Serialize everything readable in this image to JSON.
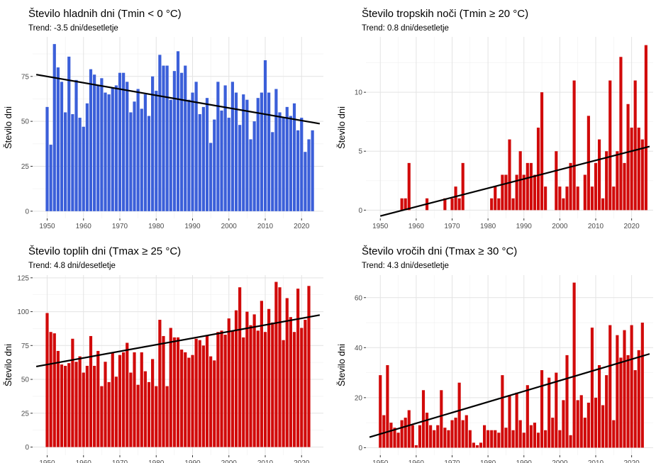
{
  "chart_data": [
    {
      "type": "bar",
      "title": "Število hladnih dni (Tmin < 0 °C)",
      "subtitle": "Trend: -3.5 dni/desetletje",
      "ylabel": "Število dni",
      "xlabel": "",
      "bar_color": "#3b5fd9",
      "x_start": 1950,
      "values": [
        58,
        37,
        93,
        80,
        72,
        55,
        86,
        54,
        73,
        52,
        47,
        60,
        79,
        76,
        70,
        74,
        66,
        65,
        69,
        70,
        77,
        77,
        72,
        55,
        61,
        68,
        57,
        65,
        53,
        75,
        67,
        87,
        81,
        81,
        62,
        78,
        89,
        77,
        81,
        62,
        66,
        72,
        54,
        58,
        63,
        38,
        51,
        72,
        56,
        70,
        52,
        72,
        66,
        48,
        65,
        62,
        40,
        50,
        63,
        66,
        84,
        66,
        44,
        68,
        55,
        52,
        58,
        53,
        60,
        45,
        52,
        33,
        40,
        45
      ],
      "xticks": [
        1950,
        1960,
        1970,
        1980,
        1990,
        2000,
        2010,
        2020
      ],
      "yticks": [
        0,
        25,
        50,
        75
      ],
      "ylim": [
        -4,
        97
      ],
      "trend": [
        [
          1947,
          76
        ],
        [
          2025,
          48.7
        ]
      ],
      "grid": true,
      "legend": "none"
    },
    {
      "type": "bar",
      "title": "Število tropskih noči (Tmin ≥ 20 °C)",
      "subtitle": "Trend: 0.8 dni/desetletje",
      "ylabel": "Število dni",
      "xlabel": "",
      "bar_color": "#d10a0a",
      "x_start": 1950,
      "values": [
        0,
        0,
        0,
        0,
        0,
        0,
        1,
        1,
        4,
        0,
        0,
        0,
        0,
        1,
        0,
        0,
        0,
        0,
        1,
        0,
        1,
        2,
        1,
        4,
        0,
        0,
        0,
        0,
        0,
        0,
        0,
        1,
        2,
        1,
        3,
        3,
        6,
        1,
        3,
        5,
        3,
        4,
        4,
        3,
        7,
        10,
        2,
        0,
        0,
        5,
        2,
        1,
        2,
        4,
        11,
        2,
        0,
        3,
        8,
        2,
        4,
        6,
        1,
        5,
        11,
        2,
        5,
        13,
        4,
        9,
        7,
        11,
        7,
        6,
        14
      ],
      "xticks": [
        1950,
        1960,
        1970,
        1980,
        1990,
        2000,
        2010,
        2020
      ],
      "yticks": [
        0,
        5,
        10
      ],
      "ylim": [
        -0.7,
        14.7
      ],
      "trend": [
        [
          1950,
          -0.5
        ],
        [
          2025,
          5.4
        ]
      ],
      "grid": true,
      "legend": "none"
    },
    {
      "type": "bar",
      "title": "Število toplih dni (Tmax ≥ 25 °C)",
      "subtitle": "Trend: 4.8 dni/desetletje",
      "ylabel": "Število dni",
      "xlabel": "",
      "bar_color": "#d10a0a",
      "x_start": 1950,
      "values": [
        99,
        85,
        84,
        71,
        61,
        60,
        62,
        80,
        63,
        67,
        55,
        60,
        82,
        60,
        71,
        45,
        63,
        48,
        70,
        52,
        68,
        70,
        77,
        55,
        70,
        46,
        70,
        56,
        48,
        65,
        45,
        94,
        82,
        45,
        88,
        81,
        81,
        72,
        70,
        66,
        68,
        80,
        79,
        75,
        82,
        67,
        64,
        85,
        86,
        83,
        95,
        86,
        101,
        118,
        81,
        100,
        90,
        98,
        86,
        108,
        85,
        102,
        92,
        122,
        118,
        79,
        110,
        96,
        85,
        117,
        88,
        94,
        119
      ],
      "xticks": [
        1950,
        1960,
        1970,
        1980,
        1990,
        2000,
        2010,
        2020
      ],
      "yticks": [
        0,
        25,
        50,
        75,
        100,
        125
      ],
      "ylim": [
        -6,
        127
      ],
      "trend": [
        [
          1947,
          59.5
        ],
        [
          2025,
          97.5
        ]
      ],
      "grid": true,
      "legend": "none"
    },
    {
      "type": "bar",
      "title": "Število vročih dni (Tmax ≥ 30 °C)",
      "subtitle": "Trend: 4.3 dni/desetletje",
      "ylabel": "Število dni",
      "xlabel": "",
      "bar_color": "#d10a0a",
      "x_start": 1950,
      "values": [
        29,
        13,
        33,
        10,
        8,
        6,
        11,
        12,
        15,
        9,
        1,
        9,
        23,
        14,
        9,
        7,
        9,
        23,
        8,
        7,
        11,
        12,
        26,
        11,
        13,
        7,
        2,
        1,
        2,
        9,
        7,
        7,
        7,
        6,
        29,
        8,
        21,
        7,
        22,
        11,
        6,
        25,
        9,
        10,
        6,
        31,
        7,
        28,
        12,
        30,
        7,
        19,
        37,
        5,
        66,
        19,
        21,
        12,
        18,
        48,
        20,
        33,
        17,
        29,
        49,
        11,
        45,
        36,
        47,
        37,
        49,
        31,
        39,
        50
      ],
      "xticks": [
        1950,
        1960,
        1970,
        1980,
        1990,
        2000,
        2010,
        2020
      ],
      "yticks": [
        0,
        20,
        40,
        60
      ],
      "ylim": [
        -3,
        69
      ],
      "trend": [
        [
          1947,
          4.2
        ],
        [
          2025,
          37.5
        ]
      ],
      "grid": true,
      "legend": "none"
    }
  ]
}
